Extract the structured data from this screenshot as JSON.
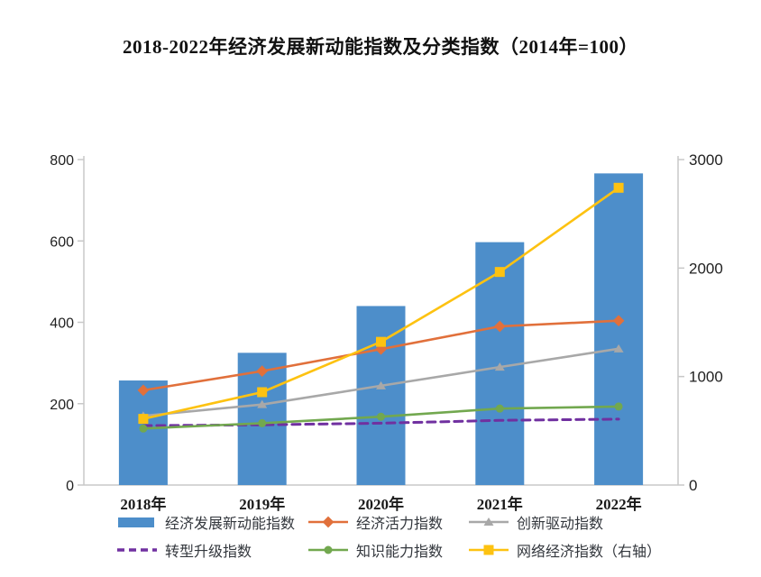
{
  "page": {
    "background": "#ffffff"
  },
  "chart_data": {
    "type": "combo-bar-line",
    "title": "2018-2022年经济发展新动能指数及分类指数（2014年=100）",
    "categories": [
      "2018年",
      "2019年",
      "2020年",
      "2021年",
      "2022年"
    ],
    "left_axis": {
      "min": 0,
      "max": 800,
      "ticks": [
        0,
        200,
        400,
        600,
        800
      ]
    },
    "right_axis": {
      "min": 0,
      "max": 3000,
      "ticks": [
        0,
        1000,
        2000,
        3000
      ]
    },
    "grid": "off",
    "legend_position": "bottom",
    "axis_color": "#c8c8c8",
    "tick_label_color": "#222222",
    "series": [
      {
        "name": "经济发展新动能指数",
        "type": "bar",
        "axis": "left",
        "color": "#4d8eca",
        "values": [
          257,
          325,
          440,
          597,
          766
        ]
      },
      {
        "name": "经济活力指数",
        "type": "line",
        "axis": "left",
        "color": "#e1703b",
        "marker": "diamond",
        "values": [
          233,
          280,
          334,
          390,
          404
        ]
      },
      {
        "name": "创新驱动指数",
        "type": "line",
        "axis": "left",
        "color": "#a8a8a8",
        "marker": "triangle",
        "values": [
          170,
          198,
          244,
          290,
          335
        ]
      },
      {
        "name": "转型升级指数",
        "type": "line",
        "axis": "left",
        "color": "#7030a0",
        "dash": true,
        "values": [
          146,
          148,
          152,
          159,
          162
        ]
      },
      {
        "name": "知识能力指数",
        "type": "line",
        "axis": "left",
        "color": "#72a84f",
        "marker": "circle",
        "values": [
          139,
          152,
          168,
          188,
          193
        ]
      },
      {
        "name": "网络经济指数（右轴）",
        "type": "line",
        "axis": "right",
        "color": "#fdc211",
        "marker": "square",
        "values": [
          610,
          856,
          1320,
          1964,
          2740
        ]
      }
    ],
    "legend_rows": [
      [
        0,
        1,
        2
      ],
      [
        3,
        4,
        5
      ]
    ]
  }
}
